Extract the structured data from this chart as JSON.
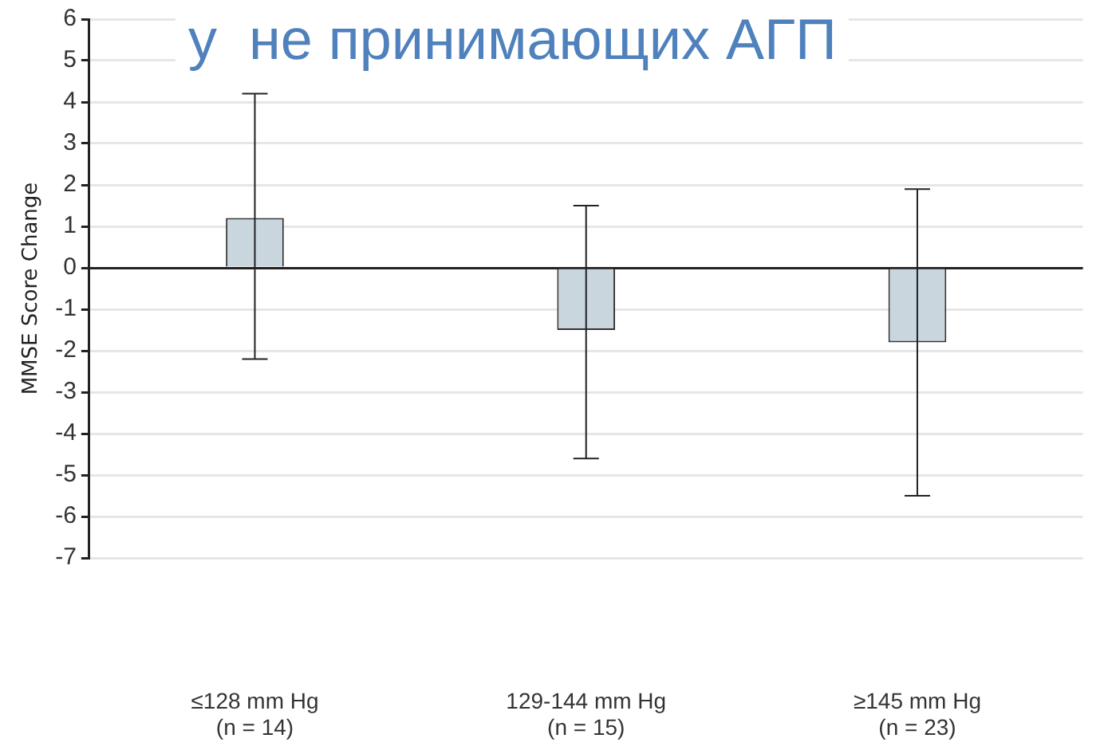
{
  "chart_data": {
    "type": "bar",
    "title": "у  не принимающих АГП",
    "ylabel": "MMSE Score Change",
    "categories": [
      "≤128 mm Hg\n(n = 14)",
      "129-144 mm Hg\n(n = 15)",
      "≥145 mm Hg\n(n = 23)"
    ],
    "values": [
      1.2,
      -1.5,
      -1.8
    ],
    "color": "#c9d6de",
    "errors": [
      [
        -2.2,
        4.2
      ],
      [
        -4.6,
        1.5
      ],
      [
        -5.5,
        1.9
      ]
    ],
    "ylim": [
      -7,
      6
    ],
    "yticks": [
      -7,
      -6,
      -5,
      -4,
      -3,
      -2,
      -1,
      0,
      1,
      2,
      3,
      4,
      5,
      6
    ],
    "grid": "y",
    "legend": false
  }
}
